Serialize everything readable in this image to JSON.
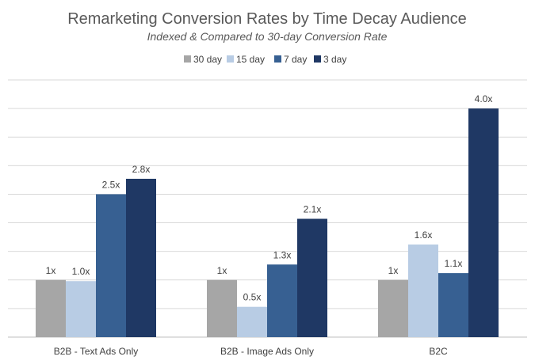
{
  "chart_data": {
    "type": "bar",
    "title": "Remarketing Conversion Rates by Time Decay Audience",
    "subtitle": "Indexed & Compared to 30-day Conversion Rate",
    "categories": [
      "B2B - Text Ads Only",
      "B2B - Image Ads Only",
      "B2C"
    ],
    "series": [
      {
        "name": "30 day",
        "color": "#a6a6a6",
        "values": [
          1.0,
          1.0,
          1.0
        ],
        "labels": [
          "1x",
          "1x",
          "1x"
        ]
      },
      {
        "name": "15 day",
        "color": "#b8cce4",
        "values": [
          0.98,
          0.53,
          1.62
        ],
        "labels": [
          "1.0x",
          "0.5x",
          "1.6x"
        ]
      },
      {
        "name": "7 day",
        "color": "#376092",
        "values": [
          2.5,
          1.27,
          1.12
        ],
        "labels": [
          "2.5x",
          "1.3x",
          "1.1x"
        ]
      },
      {
        "name": "3 day",
        "color": "#1f3864",
        "values": [
          2.77,
          2.07,
          4.0
        ],
        "labels": [
          "2.8x",
          "2.1x",
          "4.0x"
        ]
      }
    ],
    "ylim": [
      0,
      4.5
    ],
    "grid": true,
    "legend": "top-center",
    "xlabel": "",
    "ylabel": ""
  }
}
